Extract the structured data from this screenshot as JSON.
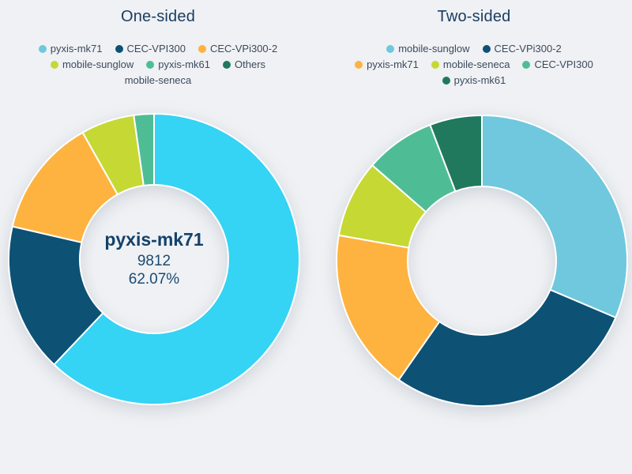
{
  "page": {
    "background": "#eff1f4"
  },
  "colors": {
    "vivid_cyan": "#35d3f4",
    "light_blue": "#6fc8dd",
    "navy": "#0d5175",
    "orange": "#feb340",
    "yellow_green": "#c6d834",
    "teal_green": "#4ebd95",
    "dark_green": "#20795c",
    "title_text": "#1a3d63",
    "legend_text": "#3c4a5c"
  },
  "chart_data": [
    {
      "type": "pie",
      "donut": true,
      "title": "One-sided",
      "legend_position": "top",
      "legend_rows": [
        [
          {
            "label": "pyxis-mk71",
            "marker_color": "#6fc8dd"
          },
          {
            "label": "CEC-VPI300",
            "marker_color": "#0d5175"
          },
          {
            "label": "CEC-VPi300-2",
            "marker_color": "#feb340"
          }
        ],
        [
          {
            "label": "mobile-sunglow",
            "marker_color": "#c6d834"
          },
          {
            "label": "pyxis-mk61",
            "marker_color": "#4ebd95"
          },
          {
            "label": "Others",
            "marker_color": "#20795c"
          }
        ],
        [
          {
            "label": "mobile-seneca",
            "marker_color": null
          }
        ]
      ],
      "slices": [
        {
          "name": "pyxis-mk71",
          "percent": 62.07,
          "value": 9812,
          "color": "#35d3f4"
        },
        {
          "name": "CEC-VPI300",
          "percent": 16.54,
          "color": "#0d5175"
        },
        {
          "name": "CEC-VPi300-2",
          "percent": 13.22,
          "color": "#feb340"
        },
        {
          "name": "mobile-sunglow",
          "percent": 5.94,
          "color": "#c6d834"
        },
        {
          "name": "pyxis-mk61",
          "percent": 2.23,
          "color": "#4ebd95"
        },
        {
          "name": "Others",
          "percent": 0,
          "color": "#20795c"
        },
        {
          "name": "mobile-seneca",
          "percent": 0,
          "color": null
        }
      ],
      "center_label": {
        "name": "pyxis-mk71",
        "value": "9812",
        "percent": "62.07%"
      },
      "start_angle_deg": 0,
      "direction": "clockwise"
    },
    {
      "type": "pie",
      "donut": true,
      "title": "Two-sided",
      "legend_position": "top",
      "legend_rows": [
        [
          {
            "label": "mobile-sunglow",
            "marker_color": "#6fc8dd"
          },
          {
            "label": "CEC-VPi300-2",
            "marker_color": "#0d5175"
          }
        ],
        [
          {
            "label": "pyxis-mk71",
            "marker_color": "#feb340"
          },
          {
            "label": "mobile-seneca",
            "marker_color": "#c6d834"
          },
          {
            "label": "CEC-VPI300",
            "marker_color": "#4ebd95"
          }
        ],
        [
          {
            "label": "pyxis-mk61",
            "marker_color": "#20795c"
          }
        ]
      ],
      "slices": [
        {
          "name": "mobile-sunglow",
          "percent": 31.4,
          "color": "#6fc8dd"
        },
        {
          "name": "CEC-VPi300-2",
          "percent": 28.3,
          "color": "#0d5175"
        },
        {
          "name": "pyxis-mk71",
          "percent": 18.1,
          "color": "#feb340"
        },
        {
          "name": "mobile-seneca",
          "percent": 8.6,
          "color": "#c6d834"
        },
        {
          "name": "CEC-VPI300",
          "percent": 7.8,
          "color": "#4ebd95"
        },
        {
          "name": "pyxis-mk61",
          "percent": 5.8,
          "color": "#20795c"
        }
      ],
      "center_label": null,
      "start_angle_deg": 0,
      "direction": "clockwise"
    }
  ]
}
